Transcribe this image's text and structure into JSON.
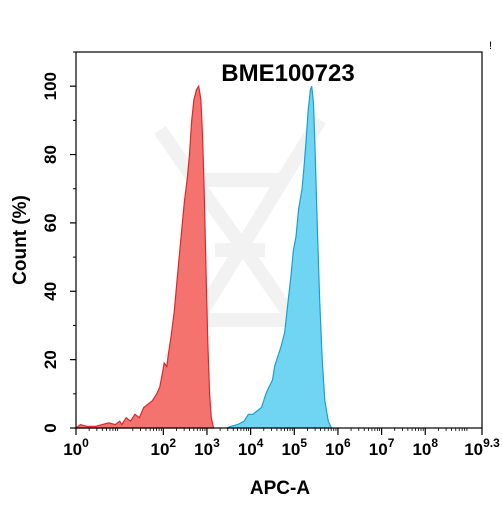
{
  "chart_data": {
    "type": "area",
    "title": "BME100723",
    "xlabel": "APC-A",
    "ylabel": "Count  (%)",
    "xscale": "log",
    "xlim_log10": [
      0,
      9.3
    ],
    "ylim": [
      0,
      110
    ],
    "x_ticks": [
      {
        "base": "10",
        "exp": "0"
      },
      {
        "base": "10",
        "exp": "2"
      },
      {
        "base": "10",
        "exp": "3"
      },
      {
        "base": "10",
        "exp": "4"
      },
      {
        "base": "10",
        "exp": "5"
      },
      {
        "base": "10",
        "exp": "6"
      },
      {
        "base": "10",
        "exp": "7"
      },
      {
        "base": "10",
        "exp": "8"
      },
      {
        "base": "10",
        "exp": "9.3"
      }
    ],
    "y_ticks": [
      "0",
      "20",
      "40",
      "60",
      "80",
      "100"
    ],
    "series": [
      {
        "color": "#f4736f",
        "stroke": "#d9292b",
        "points_log10x_y": [
          [
            0.0,
            0
          ],
          [
            0.1,
            1
          ],
          [
            0.25,
            0.5
          ],
          [
            0.45,
            0.5
          ],
          [
            0.6,
            1
          ],
          [
            0.75,
            1.5
          ],
          [
            0.9,
            1
          ],
          [
            1.0,
            2
          ],
          [
            1.05,
            1
          ],
          [
            1.15,
            3
          ],
          [
            1.25,
            2
          ],
          [
            1.35,
            4
          ],
          [
            1.45,
            3
          ],
          [
            1.55,
            6
          ],
          [
            1.65,
            7
          ],
          [
            1.75,
            8
          ],
          [
            1.85,
            10
          ],
          [
            1.92,
            12
          ],
          [
            1.98,
            16
          ],
          [
            2.02,
            19
          ],
          [
            2.08,
            18
          ],
          [
            2.12,
            22
          ],
          [
            2.18,
            27
          ],
          [
            2.25,
            34
          ],
          [
            2.32,
            44
          ],
          [
            2.4,
            55
          ],
          [
            2.48,
            66
          ],
          [
            2.55,
            73
          ],
          [
            2.6,
            80
          ],
          [
            2.65,
            90
          ],
          [
            2.7,
            96
          ],
          [
            2.76,
            99
          ],
          [
            2.81,
            100
          ],
          [
            2.86,
            96
          ],
          [
            2.9,
            85
          ],
          [
            2.94,
            68
          ],
          [
            2.98,
            45
          ],
          [
            3.02,
            25
          ],
          [
            3.06,
            10
          ],
          [
            3.1,
            3
          ],
          [
            3.15,
            0
          ]
        ]
      },
      {
        "color": "#6fd5f2",
        "stroke": "#1a9fce",
        "points_log10x_y": [
          [
            3.45,
            0
          ],
          [
            3.55,
            0.5
          ],
          [
            3.7,
            1
          ],
          [
            3.85,
            2
          ],
          [
            3.95,
            4
          ],
          [
            4.05,
            4
          ],
          [
            4.15,
            5
          ],
          [
            4.25,
            6
          ],
          [
            4.35,
            10
          ],
          [
            4.42,
            12
          ],
          [
            4.5,
            14
          ],
          [
            4.55,
            18
          ],
          [
            4.6,
            20
          ],
          [
            4.7,
            24
          ],
          [
            4.78,
            28
          ],
          [
            4.85,
            36
          ],
          [
            4.92,
            44
          ],
          [
            4.98,
            52
          ],
          [
            5.04,
            56
          ],
          [
            5.1,
            64
          ],
          [
            5.18,
            70
          ],
          [
            5.22,
            76
          ],
          [
            5.27,
            84
          ],
          [
            5.32,
            93
          ],
          [
            5.37,
            99
          ],
          [
            5.4,
            100
          ],
          [
            5.44,
            95
          ],
          [
            5.48,
            80
          ],
          [
            5.53,
            58
          ],
          [
            5.58,
            38
          ],
          [
            5.64,
            20
          ],
          [
            5.7,
            8
          ],
          [
            5.78,
            2
          ],
          [
            5.85,
            0
          ]
        ]
      }
    ]
  }
}
